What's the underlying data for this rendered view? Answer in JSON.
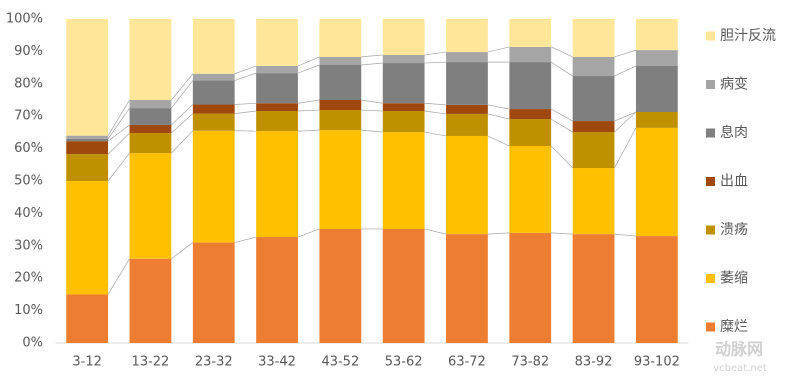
{
  "chart_data": {
    "type": "stacked_bar_100",
    "categories": [
      "3-12",
      "13-22",
      "23-32",
      "33-42",
      "43-52",
      "53-62",
      "63-72",
      "73-82",
      "83-92",
      "93-102"
    ],
    "series": [
      {
        "name": "糜烂",
        "color": "#ED7D31",
        "values": [
          15,
          26,
          31,
          32.7,
          35.2,
          35.2,
          33.6,
          34,
          33.6,
          33
        ]
      },
      {
        "name": "萎缩",
        "color": "#FFC000",
        "values": [
          35,
          32.6,
          34.5,
          32.7,
          30.5,
          29.9,
          30.3,
          26.8,
          20.4,
          33.4
        ]
      },
      {
        "name": "溃疡",
        "color": "#BF9000",
        "values": [
          8.3,
          6.2,
          5.3,
          6.2,
          6.2,
          6.5,
          6.8,
          8.3,
          11.1,
          4.9
        ]
      },
      {
        "name": "出血",
        "color": "#9E480E",
        "values": [
          4,
          2.5,
          2.8,
          2.4,
          3.1,
          2.4,
          2.8,
          3.1,
          3.4,
          0
        ]
      },
      {
        "name": "息肉",
        "color": "#7F7F7F",
        "values": [
          0.7,
          5.2,
          7.4,
          9.3,
          10.8,
          12.4,
          13.2,
          14.5,
          13.9,
          14.2
        ]
      },
      {
        "name": "病变",
        "color": "#A5A5A5",
        "values": [
          1,
          2.5,
          2.1,
          2.2,
          2.5,
          2.5,
          3.1,
          4.7,
          5.9,
          4.9
        ]
      },
      {
        "name": "胆汁反流",
        "color": "#FFE699",
        "values": [
          36,
          25,
          16.9,
          14.5,
          11.7,
          11.1,
          10.2,
          8.6,
          11.7,
          9.6
        ]
      }
    ],
    "ylim": [
      0,
      100
    ],
    "yticks": [
      {
        "value": 0,
        "label": "0%"
      },
      {
        "value": 10,
        "label": "10%"
      },
      {
        "value": 20,
        "label": "20%"
      },
      {
        "value": 30,
        "label": "30%"
      },
      {
        "value": 40,
        "label": "40%"
      },
      {
        "value": 50,
        "label": "50%"
      },
      {
        "value": 60,
        "label": "60%"
      },
      {
        "value": 70,
        "label": "70%"
      },
      {
        "value": 80,
        "label": "80%"
      },
      {
        "value": 90,
        "label": "90%"
      },
      {
        "value": 100,
        "label": "100%"
      }
    ],
    "grid": false,
    "series_lines": true,
    "legend": "right"
  },
  "watermark": {
    "brand": "动脉网",
    "site": "vcbeat.net"
  }
}
